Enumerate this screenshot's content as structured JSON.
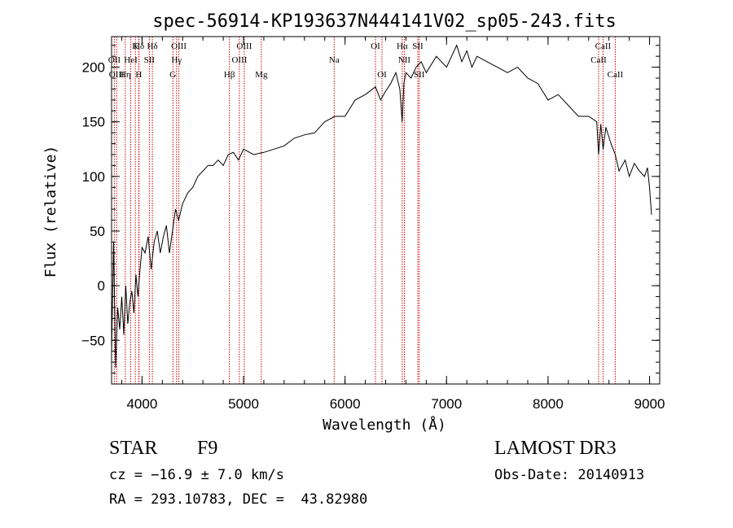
{
  "chart_data": {
    "type": "line",
    "title": "spec-56914-KP193637N444141V02_sp05-243.fits",
    "xlabel": "Wavelength (Å)",
    "ylabel": "Flux (relative)",
    "xlim": [
      3700,
      9100
    ],
    "ylim": [
      -90,
      228
    ],
    "x_ticks": [
      {
        "value": 4000,
        "label": "4000"
      },
      {
        "value": 5000,
        "label": "5000"
      },
      {
        "value": 6000,
        "label": "6000"
      },
      {
        "value": 7000,
        "label": "7000"
      },
      {
        "value": 8000,
        "label": "8000"
      },
      {
        "value": 9000,
        "label": "9000"
      }
    ],
    "y_ticks": [
      {
        "value": -50,
        "label": "−50"
      },
      {
        "value": 0,
        "label": "0"
      },
      {
        "value": 50,
        "label": "50"
      },
      {
        "value": 100,
        "label": "100"
      },
      {
        "value": 150,
        "label": "150"
      },
      {
        "value": 200,
        "label": "200"
      }
    ],
    "x_minor_step": 200,
    "y_minor_step": 10,
    "series": [
      {
        "name": "spectrum",
        "x": [
          3700,
          3720,
          3740,
          3760,
          3780,
          3800,
          3820,
          3840,
          3860,
          3880,
          3900,
          3920,
          3940,
          3960,
          3980,
          4000,
          4030,
          4060,
          4090,
          4120,
          4150,
          4180,
          4210,
          4240,
          4270,
          4300,
          4330,
          4360,
          4400,
          4450,
          4500,
          4550,
          4600,
          4650,
          4700,
          4750,
          4800,
          4850,
          4900,
          4950,
          5000,
          5100,
          5200,
          5300,
          5400,
          5500,
          5600,
          5700,
          5800,
          5900,
          6000,
          6100,
          6200,
          6300,
          6350,
          6400,
          6450,
          6500,
          6540,
          6563,
          6580,
          6600,
          6650,
          6700,
          6750,
          6800,
          6900,
          7000,
          7100,
          7150,
          7200,
          7250,
          7300,
          7400,
          7500,
          7600,
          7700,
          7800,
          7900,
          8000,
          8100,
          8200,
          8300,
          8400,
          8480,
          8498,
          8520,
          8542,
          8570,
          8620,
          8662,
          8700,
          8760,
          8800,
          8850,
          8900,
          8950,
          8980,
          9000,
          9020
        ],
        "y": [
          -60,
          40,
          -75,
          -20,
          -40,
          -10,
          -45,
          0,
          -35,
          -15,
          -5,
          -25,
          10,
          -10,
          15,
          35,
          30,
          45,
          15,
          40,
          50,
          30,
          45,
          55,
          30,
          50,
          70,
          60,
          75,
          85,
          90,
          100,
          105,
          110,
          110,
          115,
          110,
          120,
          122,
          115,
          125,
          120,
          122,
          125,
          128,
          135,
          138,
          140,
          150,
          155,
          155,
          170,
          175,
          182,
          170,
          178,
          185,
          195,
          180,
          150,
          185,
          195,
          190,
          200,
          205,
          195,
          210,
          200,
          220,
          205,
          215,
          200,
          210,
          205,
          200,
          195,
          200,
          190,
          185,
          170,
          175,
          165,
          155,
          155,
          150,
          120,
          148,
          125,
          145,
          130,
          120,
          105,
          115,
          100,
          112,
          105,
          100,
          108,
          90,
          65
        ]
      }
    ],
    "lines": [
      {
        "name": "Hδ",
        "wave": 3970,
        "row": 0
      },
      {
        "name": "K",
        "wave": 3934,
        "row": 0
      },
      {
        "name": "Hδ",
        "wave": 4102,
        "row": 0
      },
      {
        "name": "OIII",
        "wave": 4363,
        "row": 0
      },
      {
        "name": "OIII",
        "wave": 5007,
        "row": 0
      },
      {
        "name": "OI",
        "wave": 6300,
        "row": 0
      },
      {
        "name": "Hα",
        "wave": 6563,
        "row": 0
      },
      {
        "name": "SII",
        "wave": 6717,
        "row": 0
      },
      {
        "name": "CaII",
        "wave": 8542,
        "row": 0
      },
      {
        "name": "OII",
        "wave": 3727,
        "row": 1
      },
      {
        "name": "HeI",
        "wave": 3889,
        "row": 1
      },
      {
        "name": "SII",
        "wave": 4072,
        "row": 1
      },
      {
        "name": "Hγ",
        "wave": 4340,
        "row": 1
      },
      {
        "name": "OIII",
        "wave": 4959,
        "row": 1
      },
      {
        "name": "Na",
        "wave": 5893,
        "row": 1
      },
      {
        "name": "NII",
        "wave": 6584,
        "row": 1
      },
      {
        "name": "CaII",
        "wave": 8498,
        "row": 1
      },
      {
        "name": "OIII",
        "wave": 3750,
        "row": 2
      },
      {
        "name": "Hη",
        "wave": 3835,
        "row": 2
      },
      {
        "name": "H",
        "wave": 3968,
        "row": 2
      },
      {
        "name": "G",
        "wave": 4304,
        "row": 2
      },
      {
        "name": "Hβ",
        "wave": 4861,
        "row": 2
      },
      {
        "name": "Mg",
        "wave": 5175,
        "row": 2
      },
      {
        "name": "OI",
        "wave": 6364,
        "row": 2
      },
      {
        "name": "SII",
        "wave": 6731,
        "row": 2
      },
      {
        "name": "CaII",
        "wave": 8662,
        "row": 2
      }
    ],
    "grid": false,
    "line_color": "#000000",
    "marker_color": "#cc0000"
  },
  "info": {
    "class_label": "STAR",
    "subclass": "F9",
    "survey": "LAMOST DR3",
    "redshift": "cz = −16.9 ± 7.0 km/s",
    "obs_date": "Obs-Date: 20140913",
    "coords": "RA = 293.10783, DEC =  43.82980"
  }
}
